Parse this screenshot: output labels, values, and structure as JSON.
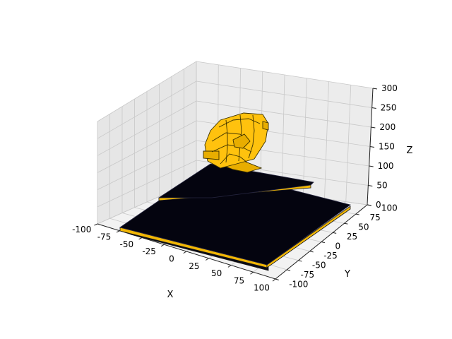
{
  "chart_data": {
    "type": "3d-surface",
    "xlabel": "X",
    "ylabel": "Y",
    "zlabel": "Z",
    "xlim": [
      -100,
      100
    ],
    "ylim": [
      -100,
      100
    ],
    "zlim": [
      0,
      300
    ],
    "x_ticks": [
      -100,
      -75,
      -50,
      -25,
      0,
      25,
      50,
      75,
      100
    ],
    "y_ticks": [
      -100,
      -75,
      -50,
      -25,
      0,
      25,
      50,
      75,
      100
    ],
    "z_ticks": [
      0,
      50,
      100,
      150,
      200,
      250,
      300
    ],
    "colors": {
      "ring": "#ffc20e",
      "plate": "#04040f",
      "plate_edge": "#f2b705"
    },
    "objects": [
      {
        "name": "base plate",
        "x_range": [
          -95,
          95
        ],
        "y_range": [
          -95,
          95
        ],
        "z": 0
      },
      {
        "name": "upper plate",
        "x_range": [
          -60,
          80
        ],
        "y_range": [
          -20,
          100
        ],
        "z": 80
      },
      {
        "name": "ring",
        "center": [
          0,
          0
        ],
        "z_range": [
          150,
          310
        ]
      }
    ]
  }
}
